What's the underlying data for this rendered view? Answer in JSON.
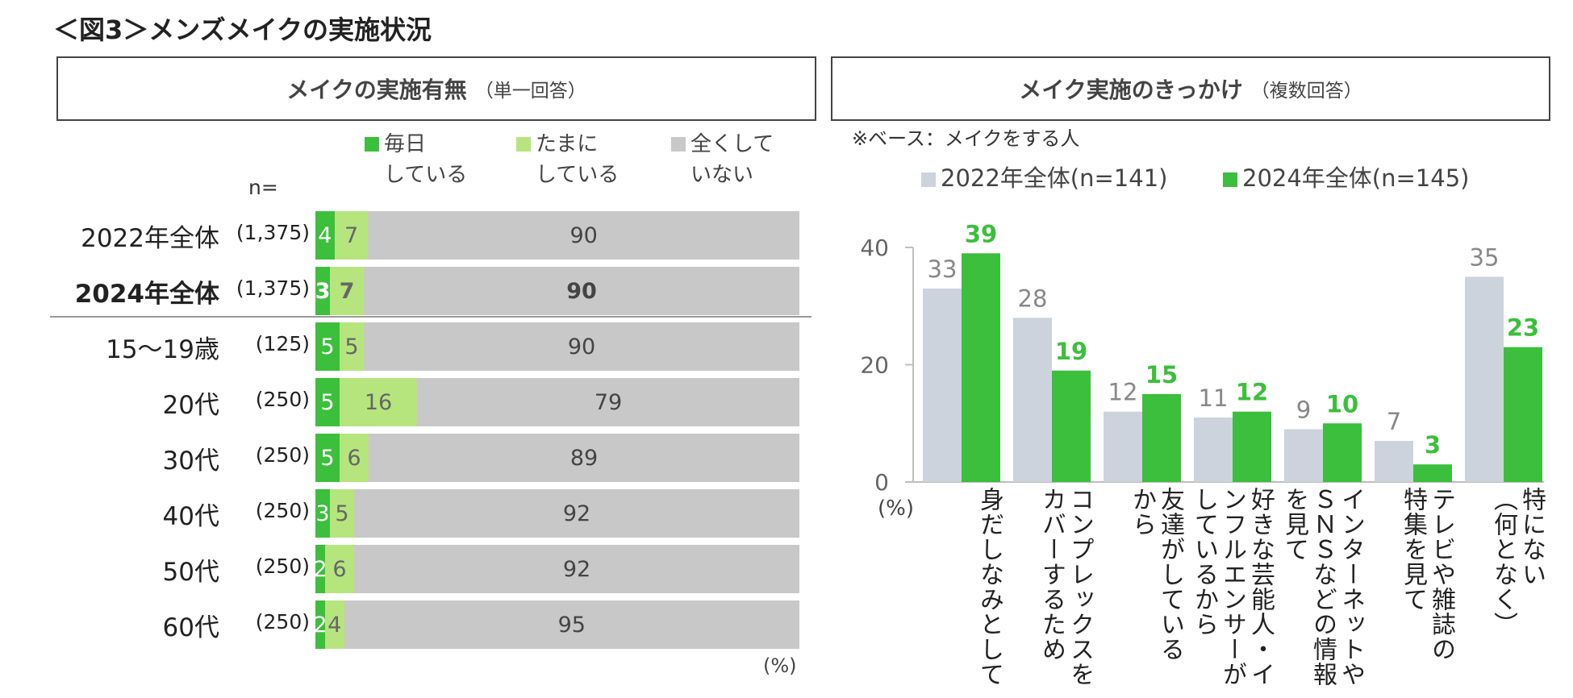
{
  "title": "＜図3＞メンズメイクの実施状況",
  "left_panel": {
    "header_main": "メイクの実施有無",
    "header_sub": "（単一回答）",
    "legend": [
      {
        "line1": "毎日",
        "line2": "している",
        "color": "#3cbf3c"
      },
      {
        "line1": "たまに",
        "line2": "している",
        "color": "#b6e57e"
      },
      {
        "line1": "全くして",
        "line2": "いない",
        "color": "#c8c8c8"
      }
    ],
    "n_label": "n=",
    "unit": "(%)"
  },
  "right_panel": {
    "header_main": "メイク実施のきっかけ",
    "header_sub": "（複数回答）",
    "base_note": "※ベース：メイクをする人",
    "unit": "(%)"
  },
  "chart_data": [
    {
      "type": "bar",
      "orientation": "horizontal-stacked-100",
      "categories": [
        "2022年全体",
        "2024年全体",
        "15～19歳",
        "20代",
        "30代",
        "40代",
        "50代",
        "60代"
      ],
      "n": [
        "(1,375)",
        "(1,375)",
        "(125)",
        "(250)",
        "(250)",
        "(250)",
        "(250)",
        "(250)"
      ],
      "bold_rows": [
        1
      ],
      "series": [
        {
          "name": "毎日している",
          "values": [
            4,
            3,
            5,
            5,
            5,
            3,
            2,
            2
          ],
          "color": "#3cbf3c"
        },
        {
          "name": "たまにしている",
          "values": [
            7,
            7,
            5,
            16,
            6,
            5,
            6,
            4
          ],
          "color": "#b6e57e"
        },
        {
          "name": "全くしていない",
          "values": [
            90,
            90,
            90,
            79,
            89,
            92,
            92,
            95
          ],
          "color": "#c8c8c8"
        }
      ],
      "xlim": [
        0,
        100
      ]
    },
    {
      "type": "bar",
      "orientation": "vertical-grouped",
      "categories": [
        "身だしなみとして",
        "コンプレックスをカバーするため",
        "友達がしているから",
        "好きな芸能人・インフルエンサーがしているから",
        "インターネットやSNSなどの情報を見て",
        "テレビや雑誌の特集を見て",
        "特にない（何となく）"
      ],
      "category_lines": [
        [
          "身だしなみとして"
        ],
        [
          "コンプレックスを",
          "カバーするため"
        ],
        [
          "友達がしている",
          "から"
        ],
        [
          "好きな芸能人・イ",
          "ンフルエンサーが",
          "しているから"
        ],
        [
          "インターネットや",
          "ＳＮＳなどの情報",
          "を見て"
        ],
        [
          "テレビや雑誌の",
          "特集を見て"
        ],
        [
          "特にない",
          "（何となく）"
        ]
      ],
      "series": [
        {
          "name": "2022年全体(n=141)",
          "values": [
            33,
            28,
            12,
            11,
            9,
            7,
            35
          ],
          "color": "#ccd3dc"
        },
        {
          "name": "2024年全体(n=145)",
          "values": [
            39,
            19,
            15,
            12,
            10,
            3,
            23
          ],
          "color": "#3cbf3c"
        }
      ],
      "yticks": [
        0,
        20,
        40
      ],
      "ylim": [
        0,
        40
      ]
    }
  ]
}
